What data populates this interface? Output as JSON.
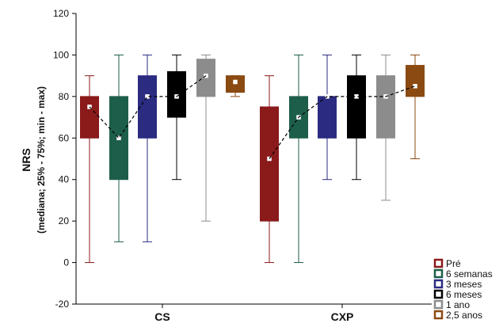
{
  "chart_data": {
    "type": "box",
    "ylabel": "NRS",
    "ylabel_sub": "(mediana; 25% - 75%; min - max)",
    "ylim": [
      -20,
      120
    ],
    "yticks": [
      -20,
      0,
      20,
      40,
      60,
      80,
      100,
      120
    ],
    "grid": false,
    "legend_position": "bottom-right",
    "groups": [
      "CS",
      "CXP"
    ],
    "series": [
      {
        "name": "Pré",
        "color": "#8b1a1a"
      },
      {
        "name": "6 semanas",
        "color": "#1d5e4a"
      },
      {
        "name": "3 meses",
        "color": "#2b2b82"
      },
      {
        "name": "6 meses",
        "color": "#000000"
      },
      {
        "name": "1 ano",
        "color": "#8c8c8c"
      },
      {
        "name": "2,5 anos",
        "color": "#8b4a12"
      }
    ],
    "boxes": {
      "CS": [
        {
          "min": 0,
          "q1": 60,
          "median": 75,
          "q3": 80,
          "max": 90
        },
        {
          "min": 10,
          "q1": 40,
          "median": 60,
          "q3": 80,
          "max": 100
        },
        {
          "min": 10,
          "q1": 60,
          "median": 80,
          "q3": 90,
          "max": 100
        },
        {
          "min": 40,
          "q1": 70,
          "median": 80,
          "q3": 92,
          "max": 100
        },
        {
          "min": 20,
          "q1": 80,
          "median": 90,
          "q3": 98,
          "max": 100
        },
        {
          "min": 80,
          "q1": 82,
          "median": 87,
          "q3": 90,
          "max": 90
        }
      ],
      "CXP": [
        {
          "min": 0,
          "q1": 20,
          "median": 50,
          "q3": 75,
          "max": 90
        },
        {
          "min": 0,
          "q1": 60,
          "median": 70,
          "q3": 80,
          "max": 100
        },
        {
          "min": 40,
          "q1": 60,
          "median": 80,
          "q3": 80,
          "max": 100
        },
        {
          "min": 40,
          "q1": 60,
          "median": 80,
          "q3": 90,
          "max": 100
        },
        {
          "min": 30,
          "q1": 60,
          "median": 80,
          "q3": 90,
          "max": 100
        },
        {
          "min": 50,
          "q1": 80,
          "median": 85,
          "q3": 95,
          "max": 100
        }
      ]
    }
  }
}
